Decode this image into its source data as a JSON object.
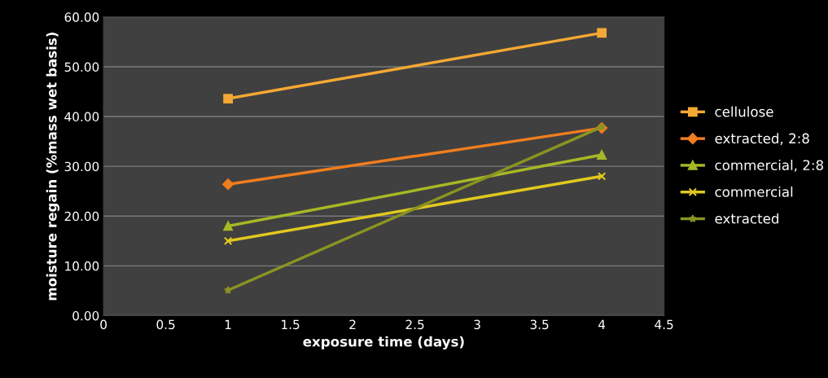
{
  "chart_data": {
    "type": "line",
    "xlabel": "exposure time (days)",
    "ylabel": "moisture regain (%mass wet basis)",
    "x": [
      1,
      4
    ],
    "series": [
      {
        "name": "cellulose",
        "color": "#f5a833",
        "marker": "square",
        "values": [
          43.6,
          56.8
        ]
      },
      {
        "name": "extracted, 2:8",
        "color": "#f07d1e",
        "marker": "diamond",
        "values": [
          26.4,
          37.7
        ]
      },
      {
        "name": "commercial, 2:8",
        "color": "#a6b825",
        "marker": "triangle",
        "values": [
          18.0,
          32.3
        ]
      },
      {
        "name": "commercial",
        "color": "#e0c81e",
        "marker": "cross",
        "values": [
          15.0,
          28.0
        ]
      },
      {
        "name": "extracted",
        "color": "#8a9420",
        "marker": "star",
        "values": [
          5.1,
          37.9
        ]
      }
    ],
    "xlim": [
      0,
      4.5
    ],
    "xticks": [
      0,
      0.5,
      1,
      1.5,
      2,
      2.5,
      3,
      3.5,
      4,
      4.5
    ],
    "ylim": [
      0,
      60
    ],
    "yticks": [
      {
        "value": 0,
        "label": "0.00"
      },
      {
        "value": 10,
        "label": "10.00"
      },
      {
        "value": 20,
        "label": "20.00"
      },
      {
        "value": 30,
        "label": "30.00"
      },
      {
        "value": 40,
        "label": "40.00"
      },
      {
        "value": 50,
        "label": "50.00"
      },
      {
        "value": 60,
        "label": "60.00"
      }
    ],
    "grid": "y",
    "legend": "right",
    "line_style": "solid"
  }
}
